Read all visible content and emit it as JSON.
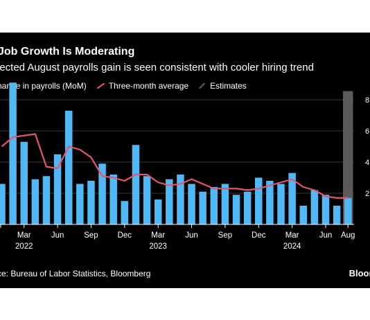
{
  "header": {
    "title": "Job Growth Is Moderating",
    "subtitle": "jected August payrolls gain is seen consistent with cooler hiring trend"
  },
  "legend": {
    "payrolls_label": "hange in payrolls (MoM)",
    "average_label": "Three-month average",
    "estimates_label": "Estimates"
  },
  "footer": {
    "source": "ce: Bureau of Labor Statistics, Bloomberg",
    "brand": "Bloomb"
  },
  "colors": {
    "bar": "#4fb8f5",
    "line": "#e8546b",
    "estimate_band": "#5a5a5a",
    "grid": "#3a3a3a",
    "background": "#000000",
    "text": "#ffffff"
  },
  "chart_data": {
    "type": "bar",
    "y_axis_side": "right",
    "ylim": [
      0,
      9
    ],
    "yticks": [
      "2",
      "4",
      "6",
      "8"
    ],
    "ytick_values": [
      2,
      4,
      6,
      8
    ],
    "x_ticks": [
      {
        "label": "Mar",
        "year": "2022",
        "index": 2
      },
      {
        "label": "Jun",
        "year": "",
        "index": 5
      },
      {
        "label": "Sep",
        "year": "",
        "index": 8
      },
      {
        "label": "Dec",
        "year": "",
        "index": 11
      },
      {
        "label": "Mar",
        "year": "2023",
        "index": 14
      },
      {
        "label": "Jun",
        "year": "",
        "index": 17
      },
      {
        "label": "Sep",
        "year": "",
        "index": 20
      },
      {
        "label": "Dec",
        "year": "",
        "index": 23
      },
      {
        "label": "Mar",
        "year": "2024",
        "index": 26
      },
      {
        "label": "Jun",
        "year": "",
        "index": 29
      },
      {
        "label": "Aug",
        "year": "",
        "index": 31
      }
    ],
    "series": [
      {
        "name": "Change in payrolls (MoM)",
        "kind": "bar",
        "values": [
          2.6,
          9.1,
          5.3,
          2.9,
          3.1,
          4.5,
          7.3,
          2.6,
          2.8,
          3.9,
          3.2,
          1.5,
          5.1,
          3.1,
          1.6,
          2.9,
          3.2,
          2.6,
          2.1,
          2.4,
          2.6,
          1.9,
          2.1,
          3.0,
          2.8,
          2.6,
          3.3,
          1.2,
          2.2,
          1.9,
          1.2,
          1.7
        ]
      },
      {
        "name": "Three-month average",
        "kind": "line",
        "values": [
          5.0,
          5.6,
          5.7,
          5.8,
          3.7,
          3.6,
          5.0,
          4.8,
          4.3,
          3.1,
          3.0,
          2.8,
          3.2,
          3.2,
          2.7,
          2.5,
          2.6,
          2.9,
          2.6,
          2.3,
          2.3,
          2.3,
          2.2,
          2.3,
          2.5,
          2.7,
          2.9,
          2.4,
          2.2,
          1.8,
          1.7,
          1.7
        ]
      }
    ],
    "estimate_index": 31
  }
}
